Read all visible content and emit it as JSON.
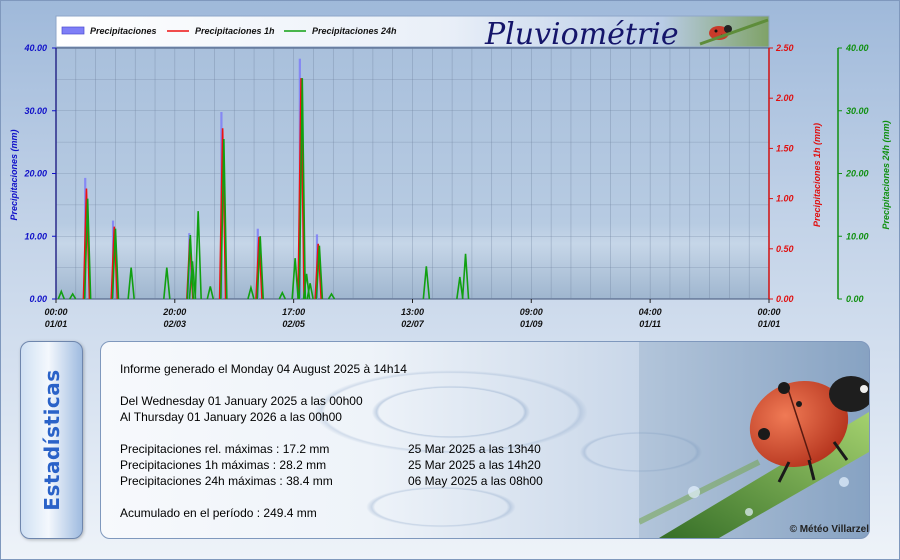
{
  "header": {
    "title": "Pluviométrie",
    "legend": [
      {
        "label": "Precipitaciones",
        "color": "#7e7ef7",
        "kind": "bar"
      },
      {
        "label": "Precipitaciones 1h",
        "color": "#ee1111",
        "kind": "line"
      },
      {
        "label": "Precipitaciones 24h",
        "color": "#11a011",
        "kind": "line"
      }
    ]
  },
  "chart_data": {
    "type": "bar",
    "axes": {
      "left": {
        "label": "Precipitaciones (mm)",
        "ticks": [
          "0.00",
          "10.00",
          "20.00",
          "30.00",
          "40.00"
        ],
        "range": [
          0,
          40
        ],
        "color": "#1010c8"
      },
      "right1": {
        "label": "Precipitaciones 1h (mm)",
        "ticks": [
          "0.00",
          "0.50",
          "1.00",
          "1.50",
          "2.00",
          "2.50"
        ],
        "range": [
          0,
          2.5
        ],
        "color": "#e01010"
      },
      "right2": {
        "label": "Precipitaciones 24h (mm)",
        "ticks": [
          "0.00",
          "10.00",
          "20.00",
          "30.00",
          "40.00"
        ],
        "range": [
          0,
          40
        ],
        "color": "#109010"
      }
    },
    "x_ticks": [
      {
        "time": "00:00",
        "date": "01/01",
        "frac": 0
      },
      {
        "time": "20:00",
        "date": "02/03",
        "frac": 0.1666
      },
      {
        "time": "17:00",
        "date": "02/05",
        "frac": 0.3333
      },
      {
        "time": "13:00",
        "date": "02/07",
        "frac": 0.5
      },
      {
        "time": "09:00",
        "date": "01/09",
        "frac": 0.6666
      },
      {
        "time": "04:00",
        "date": "01/11",
        "frac": 0.8333
      },
      {
        "time": "00:00",
        "date": "01/01",
        "frac": 1
      }
    ],
    "series": [
      {
        "name": "Precipitaciones",
        "color": "#7e7ef7",
        "points": [
          [
            0.041,
            19.3
          ],
          [
            0.08,
            12.5
          ],
          [
            0.187,
            10.5
          ],
          [
            0.232,
            29.8
          ],
          [
            0.283,
            11.2
          ],
          [
            0.342,
            38.3
          ],
          [
            0.366,
            10.3
          ]
        ]
      },
      {
        "name": "Precipitaciones 1h",
        "color": "#ee1111",
        "points": [
          [
            0.042,
            1.1
          ],
          [
            0.081,
            0.72
          ],
          [
            0.187,
            0.6
          ],
          [
            0.233,
            1.7
          ],
          [
            0.284,
            0.62
          ],
          [
            0.343,
            2.2
          ],
          [
            0.367,
            0.55
          ]
        ]
      },
      {
        "name": "Precipitaciones 24h",
        "color": "#11a011",
        "points": [
          [
            0.006,
            1.2
          ],
          [
            0.022,
            0.8
          ],
          [
            0.043,
            16.0
          ],
          [
            0.082,
            11.2
          ],
          [
            0.104,
            5.0
          ],
          [
            0.154,
            5.0
          ],
          [
            0.187,
            10.2
          ],
          [
            0.19,
            6.0
          ],
          [
            0.198,
            14.0
          ],
          [
            0.215,
            2.0
          ],
          [
            0.234,
            25.5
          ],
          [
            0.272,
            1.8
          ],
          [
            0.285,
            10.0
          ],
          [
            0.316,
            1.0
          ],
          [
            0.334,
            6.5
          ],
          [
            0.344,
            35.2
          ],
          [
            0.35,
            4.0
          ],
          [
            0.355,
            2.5
          ],
          [
            0.368,
            8.5
          ],
          [
            0.385,
            0.8
          ],
          [
            0.518,
            5.2
          ],
          [
            0.565,
            3.5
          ],
          [
            0.573,
            7.2
          ]
        ]
      }
    ]
  },
  "stats": {
    "tab_label": "Estadísticas",
    "generated": "Informe generado el Monday 04 August 2025 à 14h14",
    "from": "Del Wednesday 01 January 2025 a las 00h00",
    "to": "Al Thursday 01 January 2026 a las 00h00",
    "rows": [
      {
        "label": "Precipitaciones rel. máximas : 17.2 mm",
        "when": "25 Mar 2025 a las 13h40"
      },
      {
        "label": "Precipitaciones 1h máximas : 28.2 mm",
        "when": "25 Mar 2025 a las 14h20"
      },
      {
        "label": "Precipitaciones 24h máximas : 38.4 mm",
        "when": "06 May 2025 a las 08h00"
      }
    ],
    "total": "Acumulado en el período : 249.4 mm",
    "credit": "© Météo Villarzel"
  }
}
